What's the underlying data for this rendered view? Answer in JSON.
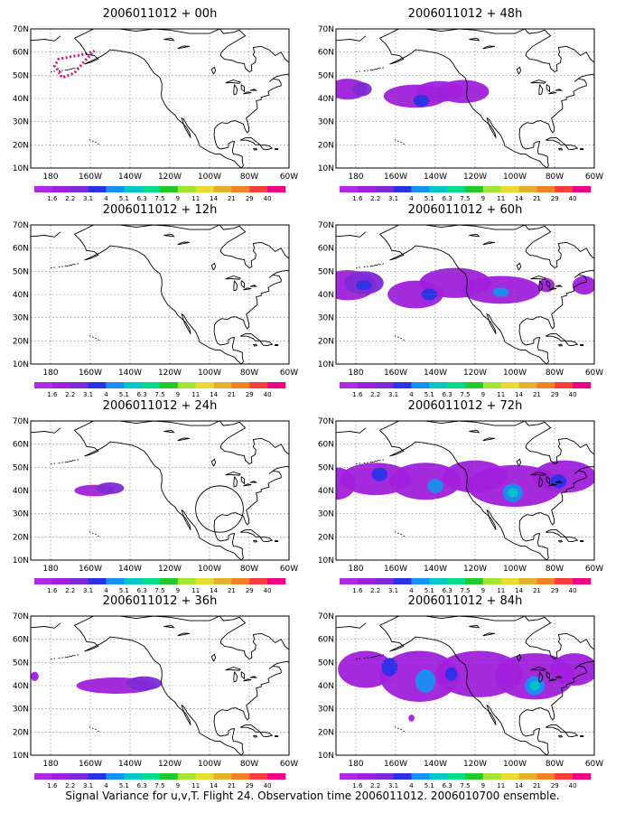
{
  "caption": "Signal Variance for u,v,T. Flight 24. Observation time 2006011012. 2006010700 ensemble.",
  "colorbar": {
    "labels": [
      "1.6",
      "2.2",
      "3.1",
      "4",
      "5.1",
      "6.3",
      "7.5",
      "9",
      "11",
      "14",
      "21",
      "29",
      "40"
    ],
    "colors": [
      "#a01fdc",
      "#7e29d6",
      "#2a32e6",
      "#1690f2",
      "#00c8c8",
      "#00dc88",
      "#24c828",
      "#a0e632",
      "#e6dc32",
      "#e6af2d",
      "#f08228",
      "#fa3c3c",
      "#f00082"
    ]
  },
  "axes": {
    "lat_labels": [
      "70N",
      "60N",
      "50N",
      "40N",
      "30N",
      "20N",
      "10N"
    ],
    "lon_labels": [
      "180",
      "160W",
      "140W",
      "120W",
      "100W",
      "80W",
      "60W"
    ]
  },
  "panels": [
    {
      "title": "2006011012 + 00h"
    },
    {
      "title": "2006011012 + 48h"
    },
    {
      "title": "2006011012 + 12h"
    },
    {
      "title": "2006011012 + 60h"
    },
    {
      "title": "2006011012 + 24h"
    },
    {
      "title": "2006011012 + 72h"
    },
    {
      "title": "2006011012 + 36h"
    },
    {
      "title": "2006011012 + 84h"
    }
  ]
}
